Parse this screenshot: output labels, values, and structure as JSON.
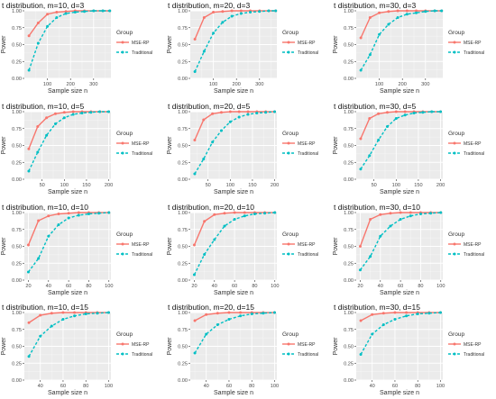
{
  "figure": {
    "group_title": "Group",
    "legend": [
      {
        "label": "MSE-RP",
        "color": "#F8766D",
        "dash": false
      },
      {
        "label": "Traditional",
        "color": "#00BFC4",
        "dash": true
      }
    ],
    "panel_background": "#EBEBEB",
    "grid_major": "#FFFFFF"
  },
  "chart_data": [
    {
      "type": "line",
      "title": "t distribution, m=10, d=3",
      "xlabel": "Sample size n",
      "ylabel": "Power",
      "xlim": [
        0,
        375
      ],
      "ylim": [
        0,
        1
      ],
      "xticks": [
        100,
        200,
        300
      ],
      "yticks": [
        0,
        0.25,
        0.5,
        0.75,
        1
      ],
      "ytick_labels": [
        "0.00",
        "0.25",
        "0.50",
        "0.75",
        "1.00"
      ],
      "legend_position": "right",
      "series": [
        {
          "name": "MSE-RP",
          "x": [
            20,
            60,
            100,
            140,
            180,
            220,
            260,
            300,
            340,
            370
          ],
          "y": [
            0.63,
            0.82,
            0.95,
            0.98,
            0.99,
            1.0,
            1.0,
            1.0,
            1.0,
            1.0
          ]
        },
        {
          "name": "Traditional",
          "x": [
            20,
            60,
            100,
            140,
            180,
            220,
            260,
            300,
            340,
            370
          ],
          "y": [
            0.12,
            0.52,
            0.77,
            0.9,
            0.96,
            0.98,
            0.99,
            1.0,
            1.0,
            1.0
          ]
        }
      ]
    },
    {
      "type": "line",
      "title": "t distribution, m=20, d=3",
      "xlabel": "Sample size n",
      "ylabel": "Power",
      "xlim": [
        0,
        375
      ],
      "ylim": [
        0,
        1
      ],
      "xticks": [
        100,
        200,
        300
      ],
      "yticks": [
        0,
        0.25,
        0.5,
        0.75,
        1
      ],
      "ytick_labels": [
        "0.00",
        "0.25",
        "0.50",
        "0.75",
        "1.00"
      ],
      "legend_position": "right",
      "series": [
        {
          "name": "MSE-RP",
          "x": [
            20,
            60,
            100,
            140,
            180,
            220,
            260,
            300,
            340,
            370
          ],
          "y": [
            0.58,
            0.9,
            0.98,
            0.99,
            1.0,
            1.0,
            1.0,
            1.0,
            1.0,
            1.0
          ]
        },
        {
          "name": "Traditional",
          "x": [
            20,
            60,
            100,
            140,
            180,
            220,
            260,
            300,
            340,
            370
          ],
          "y": [
            0.1,
            0.4,
            0.67,
            0.83,
            0.92,
            0.96,
            0.98,
            0.99,
            1.0,
            1.0
          ]
        }
      ]
    },
    {
      "type": "line",
      "title": "t distribution, m=30, d=3",
      "xlabel": "Sample size n",
      "ylabel": "Power",
      "xlim": [
        0,
        375
      ],
      "ylim": [
        0,
        1
      ],
      "xticks": [
        100,
        200,
        300
      ],
      "yticks": [
        0,
        0.25,
        0.5,
        0.75,
        1
      ],
      "ytick_labels": [
        "0.00",
        "0.25",
        "0.50",
        "0.75",
        "1.00"
      ],
      "legend_position": "right",
      "series": [
        {
          "name": "MSE-RP",
          "x": [
            20,
            60,
            100,
            140,
            180,
            220,
            260,
            300,
            340,
            370
          ],
          "y": [
            0.6,
            0.9,
            0.97,
            0.99,
            1.0,
            1.0,
            1.0,
            1.0,
            1.0,
            1.0
          ]
        },
        {
          "name": "Traditional",
          "x": [
            20,
            60,
            100,
            140,
            180,
            220,
            260,
            300,
            340,
            370
          ],
          "y": [
            0.12,
            0.35,
            0.65,
            0.8,
            0.9,
            0.95,
            0.97,
            0.99,
            1.0,
            1.0
          ]
        }
      ]
    },
    {
      "type": "line",
      "title": "t distribution, m=10, d=5",
      "xlabel": "Sample size n",
      "ylabel": "Power",
      "xlim": [
        10,
        205
      ],
      "ylim": [
        0,
        1
      ],
      "xticks": [
        50,
        100,
        150,
        200
      ],
      "yticks": [
        0,
        0.25,
        0.5,
        0.75,
        1
      ],
      "ytick_labels": [
        "0.00",
        "0.25",
        "0.50",
        "0.75",
        "1.00"
      ],
      "legend_position": "right",
      "series": [
        {
          "name": "MSE-RP",
          "x": [
            20,
            40,
            60,
            80,
            100,
            120,
            140,
            160,
            180,
            200
          ],
          "y": [
            0.45,
            0.78,
            0.91,
            0.97,
            0.99,
            1.0,
            1.0,
            1.0,
            1.0,
            1.0
          ]
        },
        {
          "name": "Traditional",
          "x": [
            20,
            40,
            60,
            80,
            100,
            120,
            140,
            160,
            180,
            200
          ],
          "y": [
            0.12,
            0.4,
            0.65,
            0.82,
            0.91,
            0.96,
            0.98,
            0.99,
            1.0,
            1.0
          ]
        }
      ]
    },
    {
      "type": "line",
      "title": "t distribution, m=20, d=5",
      "xlabel": "Sample size n",
      "ylabel": "Power",
      "xlim": [
        10,
        205
      ],
      "ylim": [
        0,
        1
      ],
      "xticks": [
        50,
        100,
        150,
        200
      ],
      "yticks": [
        0,
        0.25,
        0.5,
        0.75,
        1
      ],
      "ytick_labels": [
        "0.00",
        "0.25",
        "0.50",
        "0.75",
        "1.00"
      ],
      "legend_position": "right",
      "series": [
        {
          "name": "MSE-RP",
          "x": [
            20,
            40,
            60,
            80,
            100,
            120,
            140,
            160,
            180,
            200
          ],
          "y": [
            0.58,
            0.88,
            0.97,
            0.99,
            1.0,
            1.0,
            1.0,
            1.0,
            1.0,
            1.0
          ]
        },
        {
          "name": "Traditional",
          "x": [
            20,
            40,
            60,
            80,
            100,
            120,
            140,
            160,
            180,
            200
          ],
          "y": [
            0.08,
            0.3,
            0.55,
            0.72,
            0.85,
            0.92,
            0.96,
            0.98,
            0.99,
            1.0
          ]
        }
      ]
    },
    {
      "type": "line",
      "title": "t distribution, m=30, d=5",
      "xlabel": "Sample size n",
      "ylabel": "Power",
      "xlim": [
        10,
        205
      ],
      "ylim": [
        0,
        1
      ],
      "xticks": [
        50,
        100,
        150,
        200
      ],
      "yticks": [
        0,
        0.25,
        0.5,
        0.75,
        1
      ],
      "ytick_labels": [
        "0.00",
        "0.25",
        "0.50",
        "0.75",
        "1.00"
      ],
      "legend_position": "right",
      "series": [
        {
          "name": "MSE-RP",
          "x": [
            20,
            40,
            60,
            80,
            100,
            120,
            140,
            160,
            180,
            200
          ],
          "y": [
            0.6,
            0.9,
            0.97,
            0.99,
            1.0,
            1.0,
            1.0,
            1.0,
            1.0,
            1.0
          ]
        },
        {
          "name": "Traditional",
          "x": [
            20,
            40,
            60,
            80,
            100,
            120,
            140,
            160,
            180,
            200
          ],
          "y": [
            0.15,
            0.35,
            0.58,
            0.78,
            0.9,
            0.95,
            0.98,
            0.99,
            1.0,
            1.0
          ]
        }
      ]
    },
    {
      "type": "line",
      "title": "t distribution, m=10, d=10",
      "xlabel": "Sample size n",
      "ylabel": "Power",
      "xlim": [
        16,
        102
      ],
      "ylim": [
        0,
        1
      ],
      "xticks": [
        20,
        40,
        60,
        80,
        100
      ],
      "yticks": [
        0,
        0.25,
        0.5,
        0.75,
        1
      ],
      "ytick_labels": [
        "0.00",
        "0.25",
        "0.50",
        "0.75",
        "1.00"
      ],
      "legend_position": "right",
      "series": [
        {
          "name": "MSE-RP",
          "x": [
            20,
            30,
            40,
            50,
            60,
            70,
            80,
            90,
            100
          ],
          "y": [
            0.52,
            0.88,
            0.95,
            0.98,
            0.99,
            1.0,
            1.0,
            1.0,
            1.0
          ]
        },
        {
          "name": "Traditional",
          "x": [
            20,
            30,
            40,
            50,
            60,
            70,
            80,
            90,
            100
          ],
          "y": [
            0.12,
            0.32,
            0.65,
            0.82,
            0.92,
            0.96,
            0.98,
            0.99,
            1.0
          ]
        }
      ]
    },
    {
      "type": "line",
      "title": "t distribution, m=20, d=10",
      "xlabel": "Sample size n",
      "ylabel": "Power",
      "xlim": [
        16,
        102
      ],
      "ylim": [
        0,
        1
      ],
      "xticks": [
        20,
        40,
        60,
        80,
        100
      ],
      "yticks": [
        0,
        0.25,
        0.5,
        0.75,
        1
      ],
      "ytick_labels": [
        "0.00",
        "0.25",
        "0.50",
        "0.75",
        "1.00"
      ],
      "legend_position": "right",
      "series": [
        {
          "name": "MSE-RP",
          "x": [
            20,
            30,
            40,
            50,
            60,
            70,
            80,
            90,
            100
          ],
          "y": [
            0.52,
            0.87,
            0.97,
            0.99,
            1.0,
            1.0,
            1.0,
            1.0,
            1.0
          ]
        },
        {
          "name": "Traditional",
          "x": [
            20,
            30,
            40,
            50,
            60,
            70,
            80,
            90,
            100
          ],
          "y": [
            0.08,
            0.38,
            0.6,
            0.8,
            0.9,
            0.95,
            0.98,
            0.99,
            1.0
          ]
        }
      ]
    },
    {
      "type": "line",
      "title": "t distribution, m=30, d=10",
      "xlabel": "Sample size n",
      "ylabel": "Power",
      "xlim": [
        16,
        102
      ],
      "ylim": [
        0,
        1
      ],
      "xticks": [
        20,
        40,
        60,
        80,
        100
      ],
      "yticks": [
        0,
        0.25,
        0.5,
        0.75,
        1
      ],
      "ytick_labels": [
        "0.00",
        "0.25",
        "0.50",
        "0.75",
        "1.00"
      ],
      "legend_position": "right",
      "series": [
        {
          "name": "MSE-RP",
          "x": [
            20,
            30,
            40,
            50,
            60,
            70,
            80,
            90,
            100
          ],
          "y": [
            0.5,
            0.9,
            0.97,
            0.99,
            1.0,
            1.0,
            1.0,
            1.0,
            1.0
          ]
        },
        {
          "name": "Traditional",
          "x": [
            20,
            30,
            40,
            50,
            60,
            70,
            80,
            90,
            100
          ],
          "y": [
            0.15,
            0.35,
            0.65,
            0.8,
            0.9,
            0.95,
            0.98,
            0.99,
            1.0
          ]
        }
      ]
    },
    {
      "type": "line",
      "title": "t distribution, m=10, d=15",
      "xlabel": "Sample size n",
      "ylabel": "Power",
      "xlim": [
        26,
        102
      ],
      "ylim": [
        0,
        1
      ],
      "xticks": [
        40,
        60,
        80,
        100
      ],
      "yticks": [
        0,
        0.25,
        0.5,
        0.75,
        1
      ],
      "ytick_labels": [
        "0.00",
        "0.25",
        "0.50",
        "0.75",
        "1.00"
      ],
      "legend_position": "right",
      "series": [
        {
          "name": "MSE-RP",
          "x": [
            30,
            40,
            50,
            60,
            70,
            80,
            90,
            100
          ],
          "y": [
            0.85,
            0.96,
            0.99,
            1.0,
            1.0,
            1.0,
            1.0,
            1.0
          ]
        },
        {
          "name": "Traditional",
          "x": [
            30,
            40,
            50,
            60,
            70,
            80,
            90,
            100
          ],
          "y": [
            0.35,
            0.65,
            0.8,
            0.9,
            0.95,
            0.98,
            0.99,
            1.0
          ]
        }
      ]
    },
    {
      "type": "line",
      "title": "t distribution, m=20, d=15",
      "xlabel": "Sample size n",
      "ylabel": "Power",
      "xlim": [
        26,
        102
      ],
      "ylim": [
        0,
        1
      ],
      "xticks": [
        40,
        60,
        80,
        100
      ],
      "yticks": [
        0,
        0.25,
        0.5,
        0.75,
        1
      ],
      "ytick_labels": [
        "0.00",
        "0.25",
        "0.50",
        "0.75",
        "1.00"
      ],
      "legend_position": "right",
      "series": [
        {
          "name": "MSE-RP",
          "x": [
            30,
            40,
            50,
            60,
            70,
            80,
            90,
            100
          ],
          "y": [
            0.88,
            0.97,
            0.99,
            1.0,
            1.0,
            1.0,
            1.0,
            1.0
          ]
        },
        {
          "name": "Traditional",
          "x": [
            30,
            40,
            50,
            60,
            70,
            80,
            90,
            100
          ],
          "y": [
            0.4,
            0.68,
            0.82,
            0.9,
            0.95,
            0.98,
            0.99,
            1.0
          ]
        }
      ]
    },
    {
      "type": "line",
      "title": "t distribution, m=30, d=15",
      "xlabel": "Sample size n",
      "ylabel": "Power",
      "xlim": [
        26,
        102
      ],
      "ylim": [
        0,
        1
      ],
      "xticks": [
        40,
        60,
        80,
        100
      ],
      "yticks": [
        0,
        0.25,
        0.5,
        0.75,
        1
      ],
      "ytick_labels": [
        "0.00",
        "0.25",
        "0.50",
        "0.75",
        "1.00"
      ],
      "legend_position": "right",
      "series": [
        {
          "name": "MSE-RP",
          "x": [
            30,
            40,
            50,
            60,
            70,
            80,
            90,
            100
          ],
          "y": [
            0.88,
            0.97,
            0.99,
            1.0,
            1.0,
            1.0,
            1.0,
            1.0
          ]
        },
        {
          "name": "Traditional",
          "x": [
            30,
            40,
            50,
            60,
            70,
            80,
            90,
            100
          ],
          "y": [
            0.38,
            0.68,
            0.82,
            0.9,
            0.95,
            0.98,
            0.99,
            1.0
          ]
        }
      ]
    }
  ]
}
